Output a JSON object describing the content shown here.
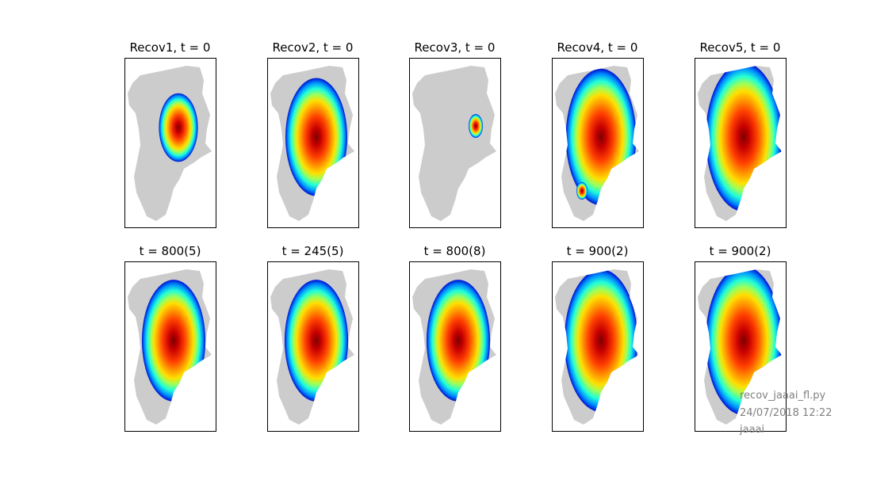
{
  "chart_data": {
    "type": "heatmap",
    "map": "Greenland ice-sheet thickness (masked grid)",
    "colormap": "jet",
    "background_land_color": "#cccccc",
    "panels": [
      {
        "title": "Recov1, t = 0",
        "extent": 0.35,
        "shape": "central-dome"
      },
      {
        "title": "Recov2, t = 0",
        "extent": 0.75,
        "shape": "broad"
      },
      {
        "title": "Recov3, t = 0",
        "extent": 0.08,
        "shape": "tiny-eastern-patch"
      },
      {
        "title": "Recov4, t = 0",
        "extent": 0.9,
        "shape": "broad-plus-southern-islet"
      },
      {
        "title": "Recov5, t = 0",
        "extent": 1.0,
        "shape": "full"
      },
      {
        "title": "t = 800(5)",
        "extent": 0.78,
        "shape": "broad"
      },
      {
        "title": "t = 245(5)",
        "extent": 0.78,
        "shape": "broad"
      },
      {
        "title": "t = 800(8)",
        "extent": 0.78,
        "shape": "broad"
      },
      {
        "title": "t = 900(2)",
        "extent": 0.95,
        "shape": "full"
      },
      {
        "title": "t = 900(2)",
        "extent": 1.0,
        "shape": "full"
      }
    ]
  },
  "footer": {
    "script": "recov_jaaai_fl.py",
    "datetime": "24/07/2018 12:22",
    "user": "jaaai"
  }
}
